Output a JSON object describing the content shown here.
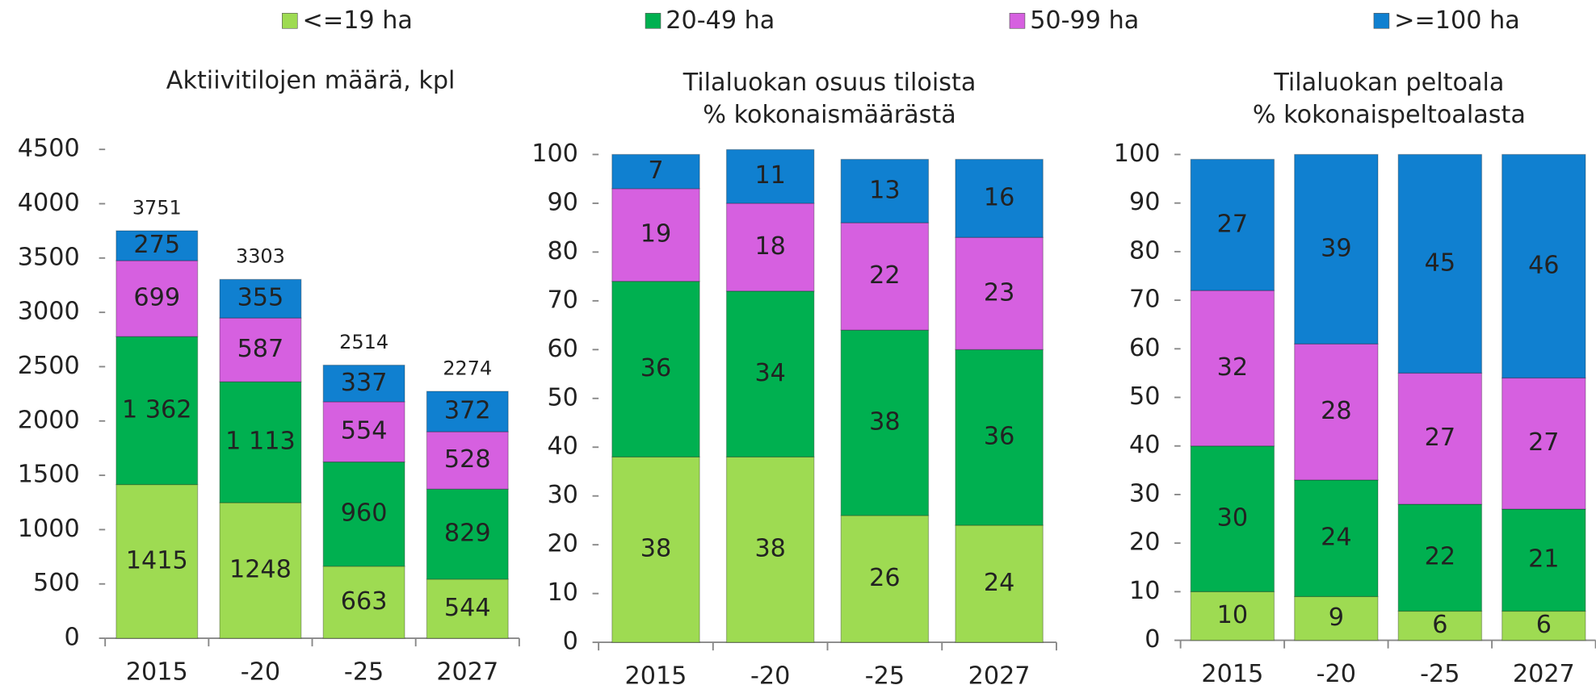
{
  "legend": {
    "series": [
      {
        "name": "<=19 ha",
        "color": "#9edb52"
      },
      {
        "name": "20-49 ha",
        "color": "#00b050"
      },
      {
        "name": "50-99 ha",
        "color": "#d660e0"
      },
      {
        "name": ">=100 ha",
        "color": "#1080d0"
      }
    ]
  },
  "chart_data": [
    {
      "type": "bar",
      "stacked": true,
      "title": [
        "Aktiivitilojen määrä, kpl"
      ],
      "categories": [
        "2015",
        "-20",
        "-25",
        "2027"
      ],
      "series": [
        {
          "values": [
            1415,
            1248,
            663,
            544
          ]
        },
        {
          "values": [
            1362,
            1113,
            960,
            829
          ],
          "value_labels": [
            "1 362",
            "1 113",
            "960",
            "829"
          ]
        },
        {
          "values": [
            699,
            587,
            554,
            528
          ]
        },
        {
          "values": [
            275,
            355,
            337,
            372
          ]
        }
      ],
      "totals": [
        3751,
        3303,
        2514,
        2274
      ],
      "ylim": [
        0,
        4500
      ],
      "yticks": [
        0,
        500,
        1000,
        1500,
        2000,
        2500,
        3000,
        3500,
        4000,
        4500
      ]
    },
    {
      "type": "bar",
      "stacked": true,
      "title": [
        "Tilaluokan osuus tiloista",
        "% kokonaismäärästä"
      ],
      "categories": [
        "2015",
        "-20",
        "-25",
        "2027"
      ],
      "series": [
        {
          "values": [
            38,
            38,
            26,
            24
          ]
        },
        {
          "values": [
            36,
            34,
            38,
            36
          ]
        },
        {
          "values": [
            19,
            18,
            22,
            23
          ]
        },
        {
          "values": [
            7,
            11,
            13,
            16
          ]
        }
      ],
      "ylim": [
        0,
        100
      ],
      "yticks": [
        0,
        10,
        20,
        30,
        40,
        50,
        60,
        70,
        80,
        90,
        100
      ]
    },
    {
      "type": "bar",
      "stacked": true,
      "title": [
        "Tilaluokan peltoala",
        "% kokonaispeltoalasta"
      ],
      "categories": [
        "2015",
        "-20",
        "-25",
        "2027"
      ],
      "series": [
        {
          "values": [
            10,
            9,
            6,
            6
          ]
        },
        {
          "values": [
            30,
            24,
            22,
            21
          ]
        },
        {
          "values": [
            32,
            28,
            27,
            27
          ]
        },
        {
          "values": [
            27,
            39,
            45,
            46
          ]
        }
      ],
      "ylim": [
        0,
        100
      ],
      "yticks": [
        0,
        10,
        20,
        30,
        40,
        50,
        60,
        70,
        80,
        90,
        100
      ]
    }
  ]
}
